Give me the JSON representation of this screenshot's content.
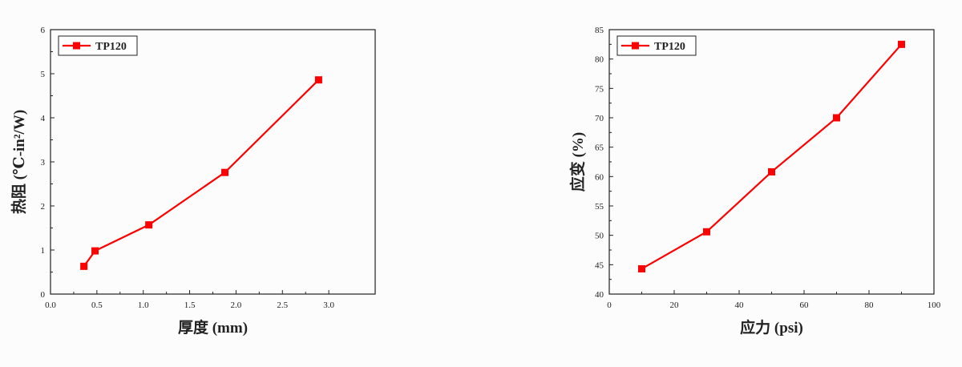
{
  "chart_data": [
    {
      "type": "line",
      "title": "",
      "xlabel": "厚度 (mm)",
      "ylabel": "热阻 (℃-in²/W)",
      "xlim": [
        0,
        3.5
      ],
      "ylim": [
        0,
        6
      ],
      "xticks": [
        "0.0",
        "0.5",
        "1.0",
        "1.5",
        "2.0",
        "2.5",
        "3.0"
      ],
      "yticks": [
        "0",
        "1",
        "2",
        "3",
        "4",
        "5",
        "6"
      ],
      "grid": false,
      "legend_position": "top-left",
      "series": [
        {
          "name": "TP120",
          "color": "#ff0000",
          "x": [
            0.36,
            0.48,
            1.06,
            1.88,
            2.89
          ],
          "y": [
            0.63,
            0.98,
            1.57,
            2.76,
            4.86
          ]
        }
      ]
    },
    {
      "type": "line",
      "title": "",
      "xlabel": "应力 (psi)",
      "ylabel": "应变 (%)",
      "xlim": [
        0,
        100
      ],
      "ylim": [
        40,
        85
      ],
      "xticks": [
        "0",
        "20",
        "40",
        "60",
        "80",
        "100"
      ],
      "yticks": [
        "40",
        "45",
        "50",
        "55",
        "60",
        "65",
        "70",
        "75",
        "80",
        "85"
      ],
      "grid": false,
      "legend_position": "top-left",
      "series": [
        {
          "name": "TP120",
          "color": "#ff0000",
          "x": [
            10,
            30,
            50,
            70,
            90
          ],
          "y": [
            44.3,
            50.6,
            60.8,
            70.0,
            82.5
          ]
        }
      ]
    }
  ]
}
